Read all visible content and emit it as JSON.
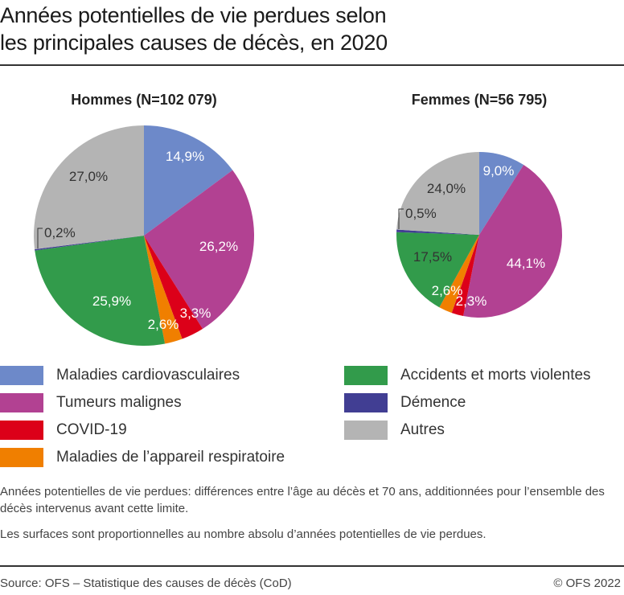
{
  "title_lines": [
    "Années potentielles de vie perdues selon",
    "les principales causes de décès, en 2020"
  ],
  "colors": {
    "cardio": "#6d89c9",
    "tumeurs": "#b24192",
    "covid": "#dc0019",
    "respir": "#f07f00",
    "accidents": "#329b4b",
    "demence": "#413e93",
    "autres": "#b4b4b4"
  },
  "chart_data": [
    {
      "type": "pie",
      "title": "Hommes (N=102 079)",
      "categories": [
        "Maladies cardiovasculaires",
        "Tumeurs malignes",
        "COVID-19",
        "Maladies de l’appareil respiratoire",
        "Accidents et morts violentes",
        "Démence",
        "Autres"
      ],
      "values": [
        14.9,
        26.2,
        3.3,
        2.6,
        25.9,
        0.2,
        27.0
      ],
      "labels": [
        "14,9%",
        "26,2%",
        "3,3%",
        "2,6%",
        "25,9%",
        "0,2%",
        "27,0%"
      ],
      "start": "12 o'clock, clockwise"
    },
    {
      "type": "pie",
      "title": "Femmes (N=56 795)",
      "categories": [
        "Maladies cardiovasculaires",
        "Tumeurs malignes",
        "COVID-19",
        "Maladies de l’appareil respiratoire",
        "Accidents et morts violentes",
        "Démence",
        "Autres"
      ],
      "values": [
        9.0,
        44.1,
        2.3,
        2.6,
        17.5,
        0.5,
        24.0
      ],
      "labels": [
        "9,0%",
        "44,1%",
        "2,3%",
        "2,6%",
        "17,5%",
        "0,5%",
        "24,0%"
      ],
      "start": "12 o'clock, clockwise"
    }
  ],
  "legend": [
    {
      "label": "Maladies cardiovasculaires",
      "key": "cardio"
    },
    {
      "label": "Tumeurs malignes",
      "key": "tumeurs"
    },
    {
      "label": "COVID-19",
      "key": "covid"
    },
    {
      "label": "Maladies de l’appareil respiratoire",
      "key": "respir"
    },
    {
      "label": "Accidents et morts violentes",
      "key": "accidents"
    },
    {
      "label": "Démence",
      "key": "demence"
    },
    {
      "label": "Autres",
      "key": "autres"
    }
  ],
  "notes": [
    "Années potentielles de vie perdues: différences entre l’âge au décès et 70 ans, additionnées pour l’ensemble des décès intervenus avant cette limite.",
    "Les surfaces sont proportionnelles au nombre absolu d’années potentielles de vie perdues."
  ],
  "footer": {
    "source": "Source: OFS – Statistique des causes de décès (CoD)",
    "copyright": "© OFS 2022"
  }
}
